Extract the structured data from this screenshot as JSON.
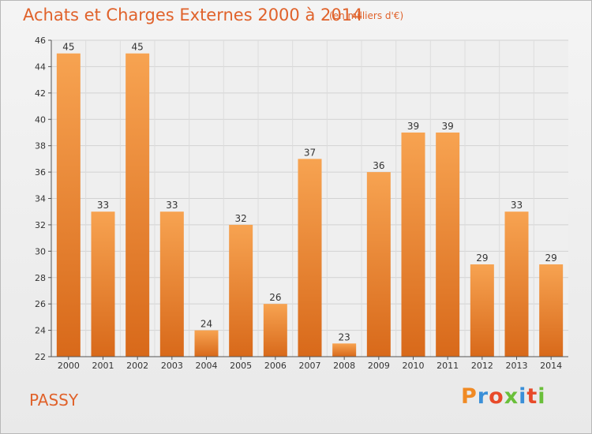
{
  "chart_data": {
    "type": "bar",
    "title": "Achats et Charges Externes 2000 à 2014",
    "subtitle": "(en milliers d'€)",
    "categories": [
      "2000",
      "2001",
      "2002",
      "2003",
      "2004",
      "2005",
      "2006",
      "2007",
      "2008",
      "2009",
      "2010",
      "2011",
      "2012",
      "2013",
      "2014"
    ],
    "values": [
      45,
      33,
      45,
      33,
      24,
      32,
      26,
      37,
      23,
      36,
      39,
      39,
      29,
      33,
      29
    ],
    "ylim": [
      22,
      46
    ],
    "yticks": [
      22,
      24,
      26,
      28,
      30,
      32,
      34,
      36,
      38,
      40,
      42,
      44,
      46
    ],
    "grid": true,
    "bar_color": "#e8822f",
    "legend": "none"
  },
  "footer": {
    "city": "PASSY",
    "brand": "Proxiti",
    "brand_colors": [
      "#f08a24",
      "#3a8fd8",
      "#e84a2a",
      "#6abf3a",
      "#3a8fd8",
      "#e84a2a",
      "#6abf3a"
    ]
  }
}
